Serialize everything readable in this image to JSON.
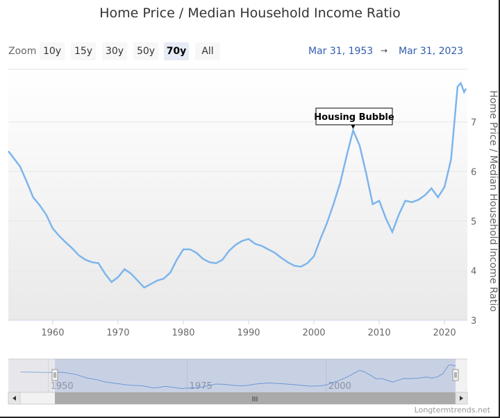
{
  "title": "Home Price / Median Household Income Ratio",
  "range_selector": {
    "label": "Zoom",
    "buttons": [
      "10y",
      "15y",
      "30y",
      "50y",
      "70y",
      "All"
    ],
    "active": "70y"
  },
  "range_input": {
    "from": "Mar 31, 1953",
    "arrow": "→",
    "to": "Mar 31, 2023"
  },
  "credits": "Longtermtrends.net",
  "navigator": {
    "ticks": [
      "1950",
      "1975",
      "2000"
    ],
    "scroll_grip": "III"
  },
  "colors": {
    "line": "#7cb5ec",
    "range_text": "#335cad"
  },
  "chart_data": {
    "type": "line",
    "title": "Home Price / Median Household Income Ratio",
    "ylabel": "Home Price / Median Household Income Ratio",
    "xlabel": "",
    "xlim": [
      1953.2,
      2023.5
    ],
    "ylim": [
      3,
      8.06
    ],
    "xticks": [
      1960,
      1970,
      1980,
      1990,
      2000,
      2010,
      2020
    ],
    "yticks": [
      3,
      4,
      5,
      6,
      7
    ],
    "grid": true,
    "annotation": {
      "text": "Housing Bubble",
      "x": 2006,
      "y": 6.83
    },
    "series": [
      {
        "name": "Home Price / Median Household Income Ratio",
        "x": [
          1953.2,
          1955,
          1956,
          1957,
          1958,
          1959,
          1960,
          1961,
          1962,
          1963,
          1964,
          1965,
          1966,
          1967,
          1968,
          1969,
          1970,
          1971,
          1972,
          1973,
          1974,
          1975,
          1976,
          1977,
          1978,
          1979,
          1980,
          1981,
          1982,
          1983,
          1984,
          1985,
          1986,
          1987,
          1988,
          1989,
          1990,
          1991,
          1992,
          1993,
          1994,
          1995,
          1996,
          1997,
          1998,
          1999,
          2000,
          2001,
          2002,
          2003,
          2004,
          2005,
          2006,
          2007,
          2008,
          2009,
          2010,
          2011,
          2012,
          2013,
          2014,
          2015,
          2016,
          2017,
          2018,
          2019,
          2020,
          2021,
          2022,
          2022.5,
          2023,
          2023.3
        ],
        "values": [
          6.41,
          6.1,
          5.8,
          5.48,
          5.32,
          5.13,
          4.85,
          4.7,
          4.57,
          4.45,
          4.31,
          4.22,
          4.17,
          4.15,
          3.94,
          3.77,
          3.87,
          4.03,
          3.94,
          3.8,
          3.66,
          3.73,
          3.8,
          3.84,
          3.96,
          4.22,
          4.43,
          4.43,
          4.36,
          4.24,
          4.17,
          4.15,
          4.22,
          4.4,
          4.52,
          4.6,
          4.64,
          4.54,
          4.5,
          4.43,
          4.36,
          4.26,
          4.17,
          4.1,
          4.08,
          4.15,
          4.29,
          4.64,
          4.96,
          5.34,
          5.76,
          6.31,
          6.83,
          6.52,
          5.96,
          5.34,
          5.41,
          5.06,
          4.78,
          5.13,
          5.41,
          5.38,
          5.43,
          5.52,
          5.66,
          5.48,
          5.69,
          6.24,
          7.71,
          7.78,
          7.6,
          7.67
        ]
      }
    ]
  }
}
